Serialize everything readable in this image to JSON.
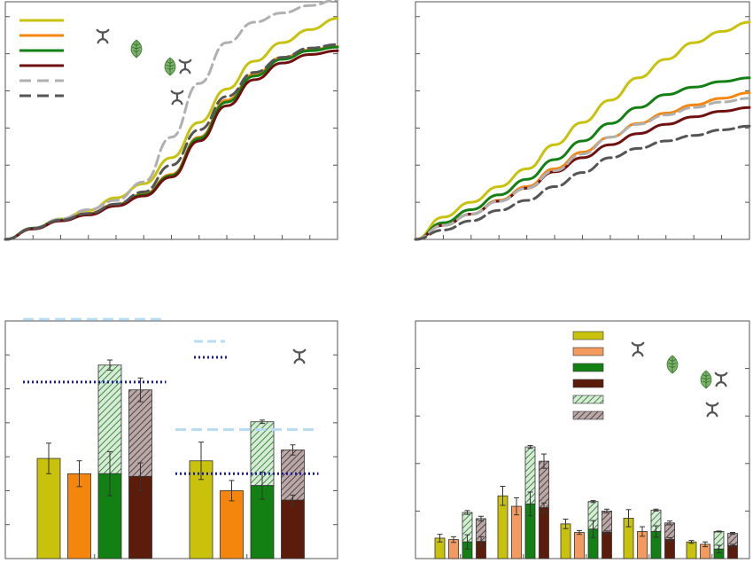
{
  "colors": {
    "olive": "#c8c20c",
    "orange": "#f5860d",
    "orange_light": "#f59a5e",
    "green": "#128012",
    "maroon": "#701010",
    "maroon_dark": "#5c1c0c",
    "gray_light": "#b0b0b0",
    "gray_dark": "#555555",
    "hatch_green": "#9cc29c",
    "hatch_brown": "#8a7070",
    "ref_light_blue": "#b8dcf4",
    "ref_navy": "#1a1a9c"
  },
  "icons": [
    "plant-icon",
    "insect-icon",
    "plant-insect-icon"
  ],
  "chart_data": [
    {
      "id": "panel-a",
      "type": "line",
      "xlim": [
        0,
        12
      ],
      "ylim": [
        0,
        6.4
      ],
      "xticks": [
        1,
        2,
        3,
        4,
        5,
        6,
        7,
        8,
        9,
        10,
        11,
        12
      ],
      "yticks": [
        1,
        2,
        3,
        4,
        5,
        6
      ],
      "x": [
        0,
        1,
        2,
        3,
        4,
        5,
        6,
        7,
        8,
        9,
        10,
        11,
        12
      ],
      "series": [
        {
          "color": "olive",
          "style": "solid",
          "values": [
            0,
            0.3,
            0.55,
            0.78,
            1.12,
            1.5,
            2.2,
            3.15,
            4.05,
            4.8,
            5.3,
            5.65,
            5.95
          ]
        },
        {
          "color": "orange",
          "style": "solid",
          "values": [
            0,
            0.3,
            0.52,
            0.7,
            0.95,
            1.22,
            1.75,
            2.75,
            3.75,
            4.45,
            4.9,
            5.1,
            5.2
          ]
        },
        {
          "color": "green",
          "style": "solid",
          "values": [
            0,
            0.3,
            0.52,
            0.68,
            0.93,
            1.2,
            1.72,
            2.72,
            3.7,
            4.4,
            4.85,
            5.08,
            5.18
          ]
        },
        {
          "color": "maroon",
          "style": "solid",
          "values": [
            0,
            0.28,
            0.5,
            0.66,
            0.9,
            1.17,
            1.68,
            2.65,
            3.6,
            4.3,
            4.75,
            4.98,
            5.08
          ]
        },
        {
          "color": "gray_light",
          "style": "dashed",
          "values": [
            0,
            0.3,
            0.55,
            0.8,
            1.05,
            1.55,
            2.75,
            4.2,
            5.3,
            5.85,
            6.1,
            6.3,
            6.45
          ]
        },
        {
          "color": "gray_dark",
          "style": "dashed",
          "values": [
            0,
            0.3,
            0.52,
            0.7,
            0.95,
            1.28,
            2.0,
            2.95,
            3.85,
            4.5,
            4.9,
            5.15,
            5.25
          ]
        }
      ],
      "legend_items": [
        {
          "color": "olive",
          "style": "solid"
        },
        {
          "color": "orange",
          "style": "solid"
        },
        {
          "color": "green",
          "style": "solid"
        },
        {
          "color": "maroon",
          "style": "solid"
        },
        {
          "color": "gray_light",
          "style": "dashed"
        },
        {
          "color": "gray_dark",
          "style": "dashed"
        }
      ]
    },
    {
      "id": "panel-b",
      "type": "line",
      "xlim": [
        0,
        12
      ],
      "ylim": [
        0,
        6.4
      ],
      "xticks": [
        1,
        2,
        3,
        4,
        5,
        6,
        7,
        8,
        9,
        10,
        11,
        12
      ],
      "yticks": [
        1,
        2,
        3,
        4,
        5,
        6
      ],
      "x": [
        0,
        1,
        2,
        3,
        4,
        5,
        6,
        7,
        8,
        9,
        10,
        11,
        12
      ],
      "series": [
        {
          "color": "olive",
          "style": "solid",
          "values": [
            0,
            0.6,
            1.0,
            1.42,
            1.9,
            2.55,
            3.15,
            3.75,
            4.35,
            4.85,
            5.3,
            5.6,
            5.85
          ]
        },
        {
          "color": "green",
          "style": "solid",
          "values": [
            0,
            0.45,
            0.8,
            1.2,
            1.62,
            2.15,
            2.65,
            3.12,
            3.55,
            3.9,
            4.1,
            4.25,
            4.35
          ]
        },
        {
          "color": "orange",
          "style": "solid",
          "values": [
            0,
            0.38,
            0.68,
            1.05,
            1.42,
            1.9,
            2.35,
            2.75,
            3.12,
            3.4,
            3.62,
            3.8,
            3.95
          ]
        },
        {
          "color": "maroon",
          "style": "solid",
          "values": [
            0,
            0.38,
            0.68,
            1.03,
            1.38,
            1.82,
            2.2,
            2.55,
            2.85,
            3.1,
            3.3,
            3.45,
            3.55
          ]
        },
        {
          "color": "gray_light",
          "style": "dashed",
          "values": [
            0,
            0.38,
            0.68,
            1.03,
            1.38,
            1.85,
            2.3,
            2.75,
            3.1,
            3.35,
            3.55,
            3.7,
            3.8
          ]
        },
        {
          "color": "gray_dark",
          "style": "dashed",
          "values": [
            0,
            0.25,
            0.5,
            0.78,
            1.05,
            1.42,
            1.8,
            2.2,
            2.45,
            2.65,
            2.8,
            2.95,
            3.05
          ]
        }
      ]
    },
    {
      "id": "panel-c",
      "type": "bar",
      "ylim": [
        0,
        7
      ],
      "yticks": [
        1,
        2,
        3,
        4,
        5,
        6,
        7
      ],
      "groups": [
        {
          "bars": [
            {
              "color": "olive",
              "value": 2.95,
              "error": 0.45
            },
            {
              "color": "orange",
              "value": 2.5,
              "error": 0.38
            },
            {
              "color": "green",
              "base": 2.5,
              "hatched": 3.2,
              "hatch_color": "hatch_green",
              "total": 5.7,
              "error": 0.15,
              "base_error": 0.65
            },
            {
              "color": "maroon_dark",
              "base": 2.42,
              "hatched": 2.55,
              "hatch_color": "hatch_brown",
              "total": 4.97,
              "error": 0.35,
              "base_error": 0.4
            }
          ],
          "ref_lines": [
            {
              "color": "ref_light_blue",
              "style": "dashed",
              "value": 7.05
            },
            {
              "color": "ref_navy",
              "style": "dotted",
              "value": 5.2
            }
          ]
        },
        {
          "bars": [
            {
              "color": "olive",
              "value": 2.88,
              "error": 0.55
            },
            {
              "color": "orange",
              "value": 2.0,
              "error": 0.3
            },
            {
              "color": "green",
              "base": 2.15,
              "hatched": 1.88,
              "hatch_color": "hatch_green",
              "total": 4.03,
              "error": 0.05,
              "base_error": 0.4
            },
            {
              "color": "maroon_dark",
              "base": 1.72,
              "hatched": 1.48,
              "hatch_color": "hatch_brown",
              "total": 3.2,
              "error": 0.15,
              "base_error": 0.15
            }
          ],
          "ref_lines": [
            {
              "color": "ref_light_blue",
              "style": "dashed",
              "value": 3.8
            },
            {
              "color": "ref_navy",
              "style": "dotted",
              "value": 2.5
            }
          ]
        }
      ],
      "legend_items": [
        {
          "color": "ref_light_blue",
          "style": "dashed"
        },
        {
          "color": "ref_navy",
          "style": "dotted"
        }
      ]
    },
    {
      "id": "panel-d",
      "type": "bar",
      "ylim": [
        0,
        5
      ],
      "yticks": [
        1,
        2,
        3,
        4,
        5
      ],
      "groups": [
        {
          "bars": [
            {
              "color": "olive",
              "value": 0.43,
              "error": 0.08
            },
            {
              "color": "orange_light",
              "value": 0.4,
              "error": 0.06
            },
            {
              "color": "green",
              "base": 0.35,
              "hatched": 0.62,
              "hatch_color": "hatch_green",
              "total": 0.97,
              "error": 0.04,
              "base_error": 0.15
            },
            {
              "color": "maroon_dark",
              "base": 0.36,
              "hatched": 0.48,
              "hatch_color": "hatch_brown",
              "total": 0.84,
              "error": 0.05,
              "base_error": 0.1
            }
          ]
        },
        {
          "bars": [
            {
              "color": "olive",
              "value": 1.32,
              "error": 0.2
            },
            {
              "color": "orange_light",
              "value": 1.1,
              "error": 0.18
            },
            {
              "color": "green",
              "base": 1.15,
              "hatched": 1.2,
              "hatch_color": "hatch_green",
              "total": 2.35,
              "error": 0.03,
              "base_error": 0.25
            },
            {
              "color": "maroon_dark",
              "base": 1.07,
              "hatched": 0.98,
              "hatch_color": "hatch_brown",
              "total": 2.05,
              "error": 0.15,
              "base_error": 0.1
            }
          ]
        },
        {
          "bars": [
            {
              "color": "olive",
              "value": 0.73,
              "error": 0.1
            },
            {
              "color": "orange_light",
              "value": 0.55,
              "error": 0.04
            },
            {
              "color": "green",
              "base": 0.62,
              "hatched": 0.58,
              "hatch_color": "hatch_green",
              "total": 1.2,
              "error": 0.02,
              "base_error": 0.18
            },
            {
              "color": "maroon_dark",
              "base": 0.55,
              "hatched": 0.45,
              "hatch_color": "hatch_brown",
              "total": 1.0,
              "error": 0.04,
              "base_error": 0.03
            }
          ]
        },
        {
          "bars": [
            {
              "color": "olive",
              "value": 0.85,
              "error": 0.18
            },
            {
              "color": "orange_light",
              "value": 0.57,
              "error": 0.1
            },
            {
              "color": "green",
              "base": 0.57,
              "hatched": 0.45,
              "hatch_color": "hatch_green",
              "total": 1.02,
              "error": 0.02,
              "base_error": 0.12
            },
            {
              "color": "maroon_dark",
              "base": 0.4,
              "hatched": 0.35,
              "hatch_color": "hatch_brown",
              "total": 0.75,
              "error": 0.04,
              "base_error": 0.04
            }
          ]
        },
        {
          "bars": [
            {
              "color": "olive",
              "value": 0.35,
              "error": 0.03
            },
            {
              "color": "orange_light",
              "value": 0.3,
              "error": 0.05
            },
            {
              "color": "green",
              "base": 0.2,
              "hatched": 0.37,
              "hatch_color": "hatch_green",
              "total": 0.57,
              "error": 0.01,
              "base_error": 0.08
            },
            {
              "color": "maroon_dark",
              "base": 0.27,
              "hatched": 0.26,
              "hatch_color": "hatch_brown",
              "total": 0.53,
              "error": 0.02,
              "base_error": 0.03
            }
          ]
        }
      ],
      "legend_items": [
        {
          "color": "olive",
          "kind": "box"
        },
        {
          "color": "orange_light",
          "kind": "box"
        },
        {
          "color": "green",
          "kind": "box"
        },
        {
          "color": "maroon_dark",
          "kind": "box"
        },
        {
          "color": "hatch_green",
          "kind": "hatched"
        },
        {
          "color": "hatch_brown",
          "kind": "hatched"
        }
      ]
    }
  ]
}
